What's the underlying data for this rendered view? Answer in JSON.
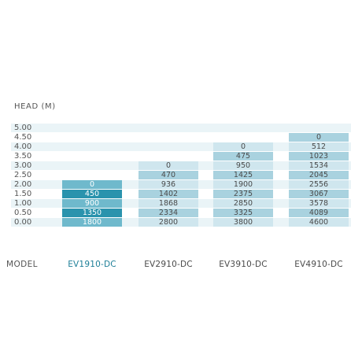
{
  "chart_data": {
    "type": "table",
    "y_axis_label": "HEAD  (M)",
    "x_axis_label": "MODEL",
    "head_values": [
      "5.00",
      "4.50",
      "4.00",
      "3.50",
      "3.00",
      "2.50",
      "2.00",
      "1.50",
      "1.00",
      "0.50",
      "0.00"
    ],
    "series": [
      {
        "name": "EV1910-DC",
        "highlighted": true,
        "values": {
          "2.00": "0",
          "1.50": "450",
          "1.00": "900",
          "0.50": "1350",
          "0.00": "1800"
        }
      },
      {
        "name": "EV2910-DC",
        "highlighted": false,
        "values": {
          "3.00": "0",
          "2.50": "470",
          "2.00": "936",
          "1.50": "1402",
          "1.00": "1868",
          "0.50": "2334",
          "0.00": "2800"
        }
      },
      {
        "name": "EV3910-DC",
        "highlighted": false,
        "values": {
          "4.00": "0",
          "3.50": "475",
          "3.00": "950",
          "2.50": "1425",
          "2.00": "1900",
          "1.50": "2375",
          "1.00": "2850",
          "0.50": "3325",
          "0.00": "3800"
        }
      },
      {
        "name": "EV4910-DC",
        "highlighted": false,
        "values": {
          "4.50": "0",
          "4.00": "512",
          "3.50": "1023",
          "3.00": "1534",
          "2.50": "2045",
          "2.00": "2556",
          "1.50": "3067",
          "1.00": "3578",
          "0.50": "4089",
          "0.00": "4600"
        }
      }
    ]
  },
  "colors": {
    "band_light": "#eaf4f7",
    "band_mid": "#cde6ee",
    "cell_light": "#cfe6ee",
    "cell_mid": "#a9d2df",
    "highlight_dark": "#2a93ad",
    "highlight_light": "#6fb9cc",
    "highlight_text": "#ffffff",
    "highlight_label": "#1e7f98",
    "text": "#4a4a4a"
  }
}
